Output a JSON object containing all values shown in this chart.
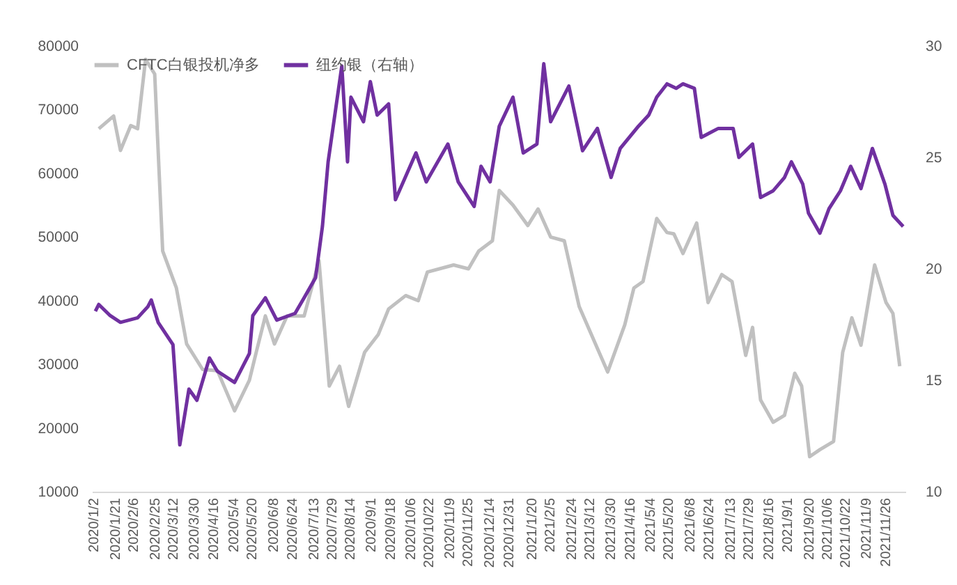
{
  "chart_data": {
    "type": "line",
    "legend": "top",
    "xlim": [
      "2020-01-01",
      "2021-12-14"
    ],
    "xticks": [
      {
        "value": "2020-01-02",
        "label": "2020/1/2"
      },
      {
        "value": "2020-01-21",
        "label": "2020/1/21"
      },
      {
        "value": "2020-02-06",
        "label": "2020/2/6"
      },
      {
        "value": "2020-02-25",
        "label": "2020/2/25"
      },
      {
        "value": "2020-03-12",
        "label": "2020/3/12"
      },
      {
        "value": "2020-03-30",
        "label": "2020/3/30"
      },
      {
        "value": "2020-04-16",
        "label": "2020/4/16"
      },
      {
        "value": "2020-05-04",
        "label": "2020/5/4"
      },
      {
        "value": "2020-05-20",
        "label": "2020/5/20"
      },
      {
        "value": "2020-06-08",
        "label": "2020/6/8"
      },
      {
        "value": "2020-06-24",
        "label": "2020/6/24"
      },
      {
        "value": "2020-07-13",
        "label": "2020/7/13"
      },
      {
        "value": "2020-07-29",
        "label": "2020/7/29"
      },
      {
        "value": "2020-08-14",
        "label": "2020/8/14"
      },
      {
        "value": "2020-09-01",
        "label": "2020/9/1"
      },
      {
        "value": "2020-09-18",
        "label": "2020/9/18"
      },
      {
        "value": "2020-10-06",
        "label": "2020/10/6"
      },
      {
        "value": "2020-10-22",
        "label": "2020/10/22"
      },
      {
        "value": "2020-11-09",
        "label": "2020/11/9"
      },
      {
        "value": "2020-11-25",
        "label": "2020/11/25"
      },
      {
        "value": "2020-12-14",
        "label": "2020/12/14"
      },
      {
        "value": "2020-12-31",
        "label": "2020/12/31"
      },
      {
        "value": "2021-01-20",
        "label": "2021/1/20"
      },
      {
        "value": "2021-02-05",
        "label": "2021/2/5"
      },
      {
        "value": "2021-02-24",
        "label": "2021/2/24"
      },
      {
        "value": "2021-03-12",
        "label": "2021/3/12"
      },
      {
        "value": "2021-03-30",
        "label": "2021/3/30"
      },
      {
        "value": "2021-04-16",
        "label": "2021/4/16"
      },
      {
        "value": "2021-05-04",
        "label": "2021/5/4"
      },
      {
        "value": "2021-05-20",
        "label": "2021/5/20"
      },
      {
        "value": "2021-06-08",
        "label": "2021/6/8"
      },
      {
        "value": "2021-06-24",
        "label": "2021/6/24"
      },
      {
        "value": "2021-07-13",
        "label": "2021/7/13"
      },
      {
        "value": "2021-07-29",
        "label": "2021/7/29"
      },
      {
        "value": "2021-08-16",
        "label": "2021/8/16"
      },
      {
        "value": "2021-09-01",
        "label": "2021/9/1"
      },
      {
        "value": "2021-09-20",
        "label": "2021/9/20"
      },
      {
        "value": "2021-10-06",
        "label": "2021/10/6"
      },
      {
        "value": "2021-10-22",
        "label": "2021/10/22"
      },
      {
        "value": "2021-11-09",
        "label": "2021/11/9"
      },
      {
        "value": "2021-11-26",
        "label": "2021/11/26"
      }
    ],
    "ylim": [
      10000,
      80000
    ],
    "yticks": [
      10000,
      20000,
      30000,
      40000,
      50000,
      60000,
      70000,
      80000
    ],
    "y2lim": [
      10,
      30
    ],
    "y2ticks": [
      10,
      15,
      20,
      25,
      30
    ],
    "series": [
      {
        "name": "CFTC白银投机净多",
        "color": "#c0c0c0",
        "x": [
          "2020-01-07",
          "2020-01-20",
          "2020-01-26",
          "2020-02-04",
          "2020-02-10",
          "2020-02-17",
          "2020-02-25",
          "2020-03-03",
          "2020-03-15",
          "2020-03-24",
          "2020-04-07",
          "2020-04-20",
          "2020-05-05",
          "2020-05-18",
          "2020-05-24",
          "2020-06-01",
          "2020-06-09",
          "2020-06-20",
          "2020-07-05",
          "2020-07-18",
          "2020-07-27",
          "2020-08-05",
          "2020-08-13",
          "2020-08-27",
          "2020-09-08",
          "2020-09-17",
          "2020-10-02",
          "2020-10-13",
          "2020-10-21",
          "2020-11-13",
          "2020-11-26",
          "2020-12-05",
          "2020-12-17",
          "2020-12-23",
          "2021-01-04",
          "2021-01-17",
          "2021-01-26",
          "2021-02-06",
          "2021-02-18",
          "2021-03-03",
          "2021-03-28",
          "2021-04-12",
          "2021-04-20",
          "2021-04-28",
          "2021-05-10",
          "2021-05-19",
          "2021-05-25",
          "2021-06-02",
          "2021-06-14",
          "2021-06-24",
          "2021-07-06",
          "2021-07-15",
          "2021-07-27",
          "2021-08-02",
          "2021-08-09",
          "2021-08-20",
          "2021-08-30",
          "2021-09-08",
          "2021-09-14",
          "2021-09-21",
          "2021-09-30",
          "2021-10-12",
          "2021-10-20",
          "2021-10-28",
          "2021-11-05",
          "2021-11-17",
          "2021-11-27",
          "2021-12-03",
          "2021-12-09"
        ],
        "values": [
          67000,
          69000,
          63600,
          67500,
          67000,
          77900,
          75600,
          47800,
          42000,
          33200,
          29200,
          29000,
          22700,
          27500,
          31900,
          37600,
          33200,
          37600,
          37600,
          46300,
          26600,
          29700,
          23400,
          31900,
          34700,
          38700,
          40800,
          40000,
          44500,
          45600,
          45000,
          47800,
          49400,
          57300,
          55000,
          51800,
          54400,
          50000,
          49400,
          39100,
          28800,
          36200,
          42000,
          43000,
          52900,
          50700,
          50500,
          47400,
          52200,
          39700,
          44100,
          43000,
          31400,
          35800,
          24400,
          20900,
          22000,
          28600,
          26600,
          15500,
          16600,
          17900,
          31900,
          37300,
          33000,
          45600,
          39700,
          38000,
          29700
        ]
      },
      {
        "name": "纽约银（右轴）",
        "color": "#7030a0",
        "axis": "y2",
        "x": [
          "2020-01-04",
          "2020-01-07",
          "2020-01-17",
          "2020-01-26",
          "2020-02-10",
          "2020-02-19",
          "2020-02-22",
          "2020-02-28",
          "2020-03-12",
          "2020-03-18",
          "2020-03-26",
          "2020-04-02",
          "2020-04-13",
          "2020-04-20",
          "2020-05-05",
          "2020-05-18",
          "2020-05-21",
          "2020-06-01",
          "2020-06-11",
          "2020-06-27",
          "2020-07-05",
          "2020-07-15",
          "2020-07-21",
          "2020-07-26",
          "2020-08-07",
          "2020-08-12",
          "2020-08-15",
          "2020-08-26",
          "2020-09-01",
          "2020-09-07",
          "2020-09-17",
          "2020-09-23",
          "2020-10-11",
          "2020-10-20",
          "2020-11-08",
          "2020-11-17",
          "2020-12-01",
          "2020-12-07",
          "2020-12-15",
          "2020-12-23",
          "2021-01-04",
          "2021-01-13",
          "2021-01-25",
          "2021-01-31",
          "2021-02-06",
          "2021-02-22",
          "2021-03-06",
          "2021-03-19",
          "2021-03-31",
          "2021-04-08",
          "2021-04-24",
          "2021-05-03",
          "2021-05-10",
          "2021-05-19",
          "2021-05-27",
          "2021-06-02",
          "2021-06-12",
          "2021-06-18",
          "2021-07-03",
          "2021-07-16",
          "2021-07-21",
          "2021-08-02",
          "2021-08-09",
          "2021-08-20",
          "2021-08-30",
          "2021-09-05",
          "2021-09-15",
          "2021-09-20",
          "2021-09-30",
          "2021-10-08",
          "2021-10-18",
          "2021-10-27",
          "2021-11-05",
          "2021-11-15",
          "2021-11-26",
          "2021-12-03",
          "2021-12-12"
        ],
        "values": [
          18.1,
          18.4,
          17.9,
          17.6,
          17.8,
          18.3,
          18.6,
          17.6,
          16.6,
          12.1,
          14.6,
          14.1,
          16.0,
          15.4,
          14.9,
          16.2,
          17.9,
          18.7,
          17.7,
          18.0,
          18.7,
          19.6,
          21.9,
          24.8,
          29.1,
          24.8,
          27.7,
          26.6,
          28.4,
          26.9,
          27.4,
          23.1,
          25.2,
          23.9,
          25.6,
          23.9,
          22.8,
          24.6,
          23.9,
          26.4,
          27.7,
          25.2,
          25.6,
          29.2,
          26.6,
          28.2,
          25.3,
          26.3,
          24.1,
          25.4,
          26.4,
          26.9,
          27.7,
          28.3,
          28.1,
          28.3,
          28.1,
          25.9,
          26.3,
          26.3,
          25.0,
          25.6,
          23.2,
          23.5,
          24.1,
          24.8,
          23.8,
          22.5,
          21.6,
          22.7,
          23.5,
          24.6,
          23.6,
          25.4,
          23.8,
          22.4,
          21.9
        ]
      }
    ]
  }
}
